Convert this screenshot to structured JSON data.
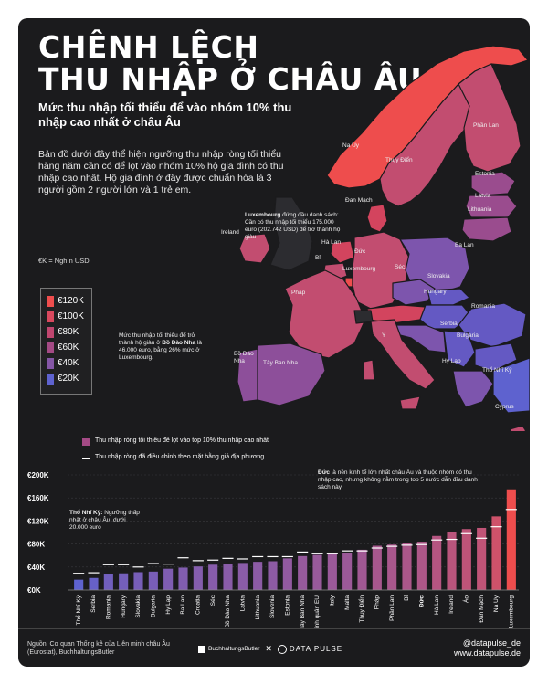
{
  "title_line1": "CHÊNH LỆCH",
  "title_line2": "THU NHẬP Ở CHÂU ÂU",
  "subtitle": "Mức thu nhập tối thiểu để vào nhóm 10% thu nhập cao nhất ở châu Âu",
  "intro": "Bản đồ dưới đây thể hiện ngưỡng thu nhập ròng tối thiểu hàng năm cần có để lọt vào nhóm 10% hộ gia đình có thu nhập cao nhất. Hộ gia đình ở đây được chuẩn hóa là 3 người gồm 2 người lớn và 1 trẻ em.",
  "unit_note": "€K = Nghìn USD",
  "legend": [
    {
      "label": "€120K",
      "color": "#ee4d4d"
    },
    {
      "label": "€100K",
      "color": "#d9485e"
    },
    {
      "label": "€80K",
      "color": "#c0466f"
    },
    {
      "label": "€60K",
      "color": "#a44a85"
    },
    {
      "label": "€40K",
      "color": "#8556a6"
    },
    {
      "label": "€20K",
      "color": "#5e62cf"
    }
  ],
  "map_labels": {
    "na_uy": "Na Uy",
    "thuy_dien": "Thụy Điển",
    "phan_lan": "Phần Lan",
    "estonia": "Estonia",
    "latvia": "Latvia",
    "lithuania": "Lithuania",
    "dan_mach": "Đan Mạch",
    "ireland": "Ireland",
    "ha_lan": "Hà Lan",
    "bi": "Bỉ",
    "duc": "Đức",
    "ba_lan": "Ba Lan",
    "luxembourg": "Luxembourg",
    "sec": "Séc",
    "slovakia": "Slovakia",
    "phap": "Pháp",
    "hungary": "Hungary",
    "romania": "Romania",
    "serbia": "Serbia",
    "bulgaria": "Bulgaria",
    "y": "Ý",
    "bo_dao_nha": "Bồ Đào Nha",
    "tay_ban_nha": "Tây Ban Nha",
    "hy_lap": "Hy Lạp",
    "tho_nhi_ky": "Thổ Nhĩ Kỳ",
    "cyprus": "Cyprus"
  },
  "ann_lux_bold": "Luxembourg",
  "ann_lux": " đứng đầu danh sách: Cần có thu nhập tối thiểu 175.000 euro (202.742 USD) để trở thành hộ giàu",
  "ann_pt_1": "Mức thu nhập tối thiểu để trở thành hộ giàu ở ",
  "ann_pt_bold": "Bồ Đào Nha",
  "ann_pt_2": " là 46.000 euro, bằng 26% mức ở Luxembourg.",
  "ann_tr_bold": "Thổ Nhĩ Kỳ:",
  "ann_tr": " Ngưỡng thấp nhất ở châu Âu, dưới 20.000 euro",
  "ann_de_bold": "Đức",
  "ann_de": " là nền kinh tế lớn nhất châu Âu và thuộc nhóm có thu nhập cao, nhưng không nằm trong top 5 nước dẫn đầu danh sách này.",
  "chart_legend_bar": "Thu nhập ròng tối thiểu để lọt vào top 10% thu nhập cao nhất",
  "chart_legend_line": "Thu nhập ròng đã điều chỉnh theo mặt bằng giá địa phương",
  "chart_data": {
    "type": "bar",
    "categories": [
      "Thổ Nhĩ Kỳ",
      "Serbia",
      "Romania",
      "Hungary",
      "Slovakia",
      "Bulgaria",
      "Hy Lạp",
      "Ba Lan",
      "Croatia",
      "Séc",
      "Bồ Đào Nha",
      "Latvia",
      "Lithuania",
      "Slovenia",
      "Estonia",
      "Tây Ban Nha",
      "Bình quân EU",
      "Italy",
      "Malta",
      "Thụy Điển",
      "Pháp",
      "Phần Lan",
      "Bỉ",
      "Đức",
      "Hà Lan",
      "Ireland",
      "Áo",
      "Đan Mạch",
      "Na Uy",
      "Luxembourg"
    ],
    "series": [
      {
        "values": [
          18,
          21,
          27,
          29,
          31,
          32,
          37,
          39,
          41,
          44,
          46,
          47,
          49,
          50,
          55,
          59,
          61,
          63,
          64,
          70,
          77,
          79,
          82,
          84,
          94,
          100,
          106,
          108,
          128,
          175
        ]
      },
      {
        "values": [
          29,
          30,
          44,
          44,
          40,
          46,
          45,
          56,
          51,
          52,
          55,
          54,
          58,
          58,
          58,
          66,
          63,
          63,
          68,
          68,
          73,
          76,
          78,
          79,
          87,
          88,
          98,
          90,
          110,
          140
        ]
      }
    ],
    "ylim": [
      0,
      200
    ],
    "yticks": [
      "€0K",
      "€40K",
      "€80K",
      "€120K",
      "€160K",
      "€200K"
    ],
    "ytick_values": [
      0,
      40,
      80,
      120,
      160,
      200
    ],
    "colors": {
      "low": "#5e62cf",
      "high": "#ee4d4d",
      "price_line": "#ffffff"
    }
  },
  "footer_source": "Nguồn: Cơ quan Thống kê của Liên minh châu Âu (Eurostat), BuchhaltungsButler",
  "logo_1": "BuchhaltungsButler",
  "logo_sep": "✕",
  "logo_2": "DATA PULSE",
  "handle": "@datapulse_de",
  "website": "www.datapulse.de"
}
